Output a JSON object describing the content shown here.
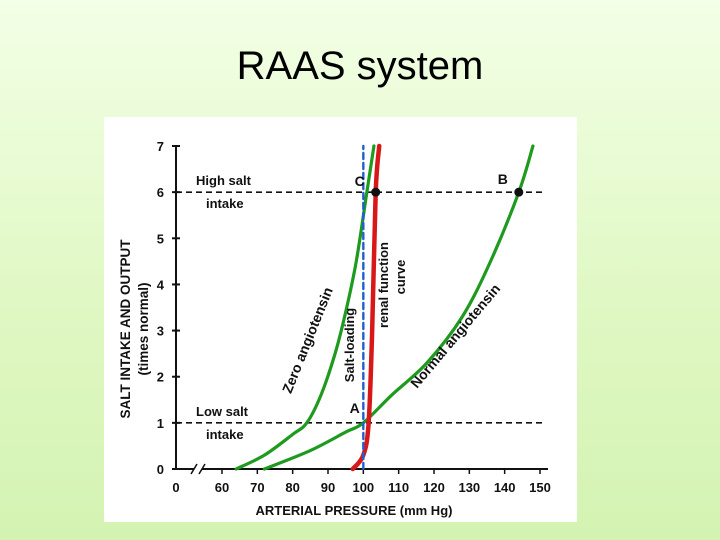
{
  "slide": {
    "title": "RAAS system"
  },
  "colors": {
    "zero_angiotensin": "#1e9a1e",
    "normal_angiotensin": "#1e9a1e",
    "renal_function_curve": "#d81818",
    "salt_loading": "#1f5fd0",
    "axes": "#111111"
  },
  "chart_data": {
    "type": "line",
    "xlabel": "ARTERIAL PRESSURE (mm Hg)",
    "ylabel": "SALT INTAKE AND OUTPUT",
    "ylabel_sub": "(times normal)",
    "x_ticks": [
      "0",
      "60",
      "70",
      "80",
      "90",
      "100",
      "110",
      "120",
      "130",
      "140",
      "150"
    ],
    "y_ticks": [
      "0",
      "1",
      "2",
      "3",
      "4",
      "5",
      "6",
      "7"
    ],
    "xlim": [
      55,
      155
    ],
    "ylim": [
      0,
      7
    ],
    "x_axis_break": true,
    "grid": false,
    "reference_lines": [
      {
        "label": "High salt intake",
        "line1": "High salt",
        "line2": "intake",
        "y": 6
      },
      {
        "label": "Low salt intake",
        "line1": "Low salt",
        "line2": "intake",
        "y": 1
      }
    ],
    "series": [
      {
        "name": "Zero angiotensin",
        "points": [
          [
            64,
            0
          ],
          [
            72,
            0.3
          ],
          [
            80,
            0.75
          ],
          [
            84,
            1.0
          ],
          [
            88,
            1.6
          ],
          [
            92,
            2.5
          ],
          [
            95,
            3.4
          ],
          [
            98,
            4.5
          ],
          [
            101,
            6.0
          ],
          [
            103,
            7.0
          ]
        ]
      },
      {
        "name": "Normal angiotensin",
        "points": [
          [
            72,
            0
          ],
          [
            85,
            0.4
          ],
          [
            95,
            0.8
          ],
          [
            100,
            1.0
          ],
          [
            108,
            1.6
          ],
          [
            118,
            2.3
          ],
          [
            128,
            3.3
          ],
          [
            136,
            4.5
          ],
          [
            144,
            6.0
          ],
          [
            148,
            7.0
          ]
        ]
      },
      {
        "name": "renal function curve",
        "line1": "renal function",
        "line2": "curve",
        "points": [
          [
            97,
            0
          ],
          [
            100,
            0.3
          ],
          [
            101.5,
            1.0
          ],
          [
            102.5,
            3.0
          ],
          [
            103.5,
            6.0
          ],
          [
            104.5,
            7.0
          ]
        ]
      },
      {
        "name": "Salt-loading",
        "points": [
          [
            100,
            0
          ],
          [
            100,
            7
          ]
        ]
      }
    ],
    "points": [
      {
        "label": "A",
        "x": 101.5,
        "y": 1
      },
      {
        "label": "B",
        "x": 144,
        "y": 6
      },
      {
        "label": "C",
        "x": 103.5,
        "y": 6
      }
    ]
  }
}
